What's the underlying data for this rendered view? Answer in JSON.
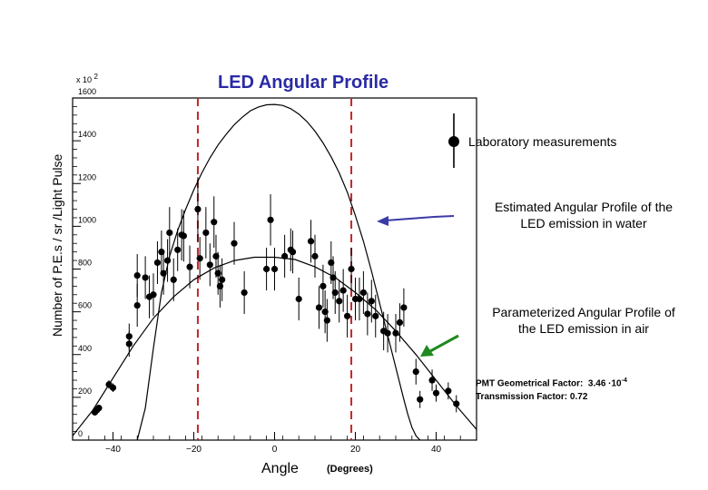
{
  "chart_data": {
    "type": "scatter",
    "title": "LED Angular Profile",
    "xlabel": "Angle",
    "x_units": "(Degrees)",
    "ylabel": "Number of P.E.s / sr /Light Pulse",
    "y_multiplier": "x 10",
    "y_multiplier_exp": "2",
    "xlim": [
      -50,
      50
    ],
    "ylim": [
      0,
      1600
    ],
    "x_ticks": [
      -40,
      -20,
      0,
      20,
      40
    ],
    "x_tick_labels": [
      "−40",
      "−20",
      "0",
      "20",
      "40"
    ],
    "y_ticks": [
      0,
      200,
      400,
      600,
      800,
      1000,
      1200,
      1400,
      1600
    ],
    "y_tick_labels": [
      "0",
      "200",
      "400",
      "600",
      "800",
      "1000",
      "1200",
      "1400",
      "1600"
    ],
    "grid": false,
    "vertical_reference_lines": [
      -19,
      19
    ],
    "reference_line_color": "#c0282c",
    "curve_color": "#000000",
    "series": [
      {
        "name": "Laboratory measurements",
        "marker": "filled-circle",
        "points": [
          {
            "x": -44.5,
            "y": 130,
            "err": 15
          },
          {
            "x": -44,
            "y": 140,
            "err": 15
          },
          {
            "x": -43.5,
            "y": 150,
            "err": 15
          },
          {
            "x": -41,
            "y": 260,
            "err": 20
          },
          {
            "x": -40,
            "y": 245,
            "err": 20
          },
          {
            "x": -36,
            "y": 450,
            "err": 60
          },
          {
            "x": -36,
            "y": 485,
            "err": 60
          },
          {
            "x": -34,
            "y": 630,
            "err": 100
          },
          {
            "x": -34,
            "y": 770,
            "err": 100
          },
          {
            "x": -32,
            "y": 760,
            "err": 100
          },
          {
            "x": -31,
            "y": 670,
            "err": 100
          },
          {
            "x": -30,
            "y": 680,
            "err": 100
          },
          {
            "x": -29,
            "y": 830,
            "err": 100
          },
          {
            "x": -28,
            "y": 880,
            "err": 100
          },
          {
            "x": -27.5,
            "y": 780,
            "err": 100
          },
          {
            "x": -26.5,
            "y": 840,
            "err": 100
          },
          {
            "x": -26,
            "y": 970,
            "err": 120
          },
          {
            "x": -25,
            "y": 750,
            "err": 100
          },
          {
            "x": -24,
            "y": 890,
            "err": 100
          },
          {
            "x": -23,
            "y": 960,
            "err": 120
          },
          {
            "x": -22.5,
            "y": 955,
            "err": 120
          },
          {
            "x": -21,
            "y": 810,
            "err": 100
          },
          {
            "x": -19,
            "y": 1080,
            "err": 150
          },
          {
            "x": -18.5,
            "y": 850,
            "err": 100
          },
          {
            "x": -17,
            "y": 970,
            "err": 120
          },
          {
            "x": -16,
            "y": 820,
            "err": 100
          },
          {
            "x": -15,
            "y": 1020,
            "err": 120
          },
          {
            "x": -14.5,
            "y": 860,
            "err": 100
          },
          {
            "x": -14,
            "y": 780,
            "err": 100
          },
          {
            "x": -13.5,
            "y": 720,
            "err": 100
          },
          {
            "x": -13,
            "y": 750,
            "err": 100
          },
          {
            "x": -10,
            "y": 920,
            "err": 100
          },
          {
            "x": -7.5,
            "y": 690,
            "err": 100
          },
          {
            "x": -2,
            "y": 800,
            "err": 100
          },
          {
            "x": -1,
            "y": 1030,
            "err": 120
          },
          {
            "x": 0,
            "y": 800,
            "err": 100
          },
          {
            "x": 2.5,
            "y": 860,
            "err": 100
          },
          {
            "x": 4,
            "y": 890,
            "err": 100
          },
          {
            "x": 4.5,
            "y": 880,
            "err": 100
          },
          {
            "x": 6,
            "y": 660,
            "err": 100
          },
          {
            "x": 9,
            "y": 930,
            "err": 100
          },
          {
            "x": 10,
            "y": 860,
            "err": 100
          },
          {
            "x": 11,
            "y": 620,
            "err": 100
          },
          {
            "x": 12,
            "y": 720,
            "err": 100
          },
          {
            "x": 12.5,
            "y": 600,
            "err": 100
          },
          {
            "x": 13,
            "y": 560,
            "err": 100
          },
          {
            "x": 14,
            "y": 830,
            "err": 100
          },
          {
            "x": 14.5,
            "y": 760,
            "err": 100
          },
          {
            "x": 15,
            "y": 690,
            "err": 100
          },
          {
            "x": 16,
            "y": 650,
            "err": 100
          },
          {
            "x": 17,
            "y": 700,
            "err": 100
          },
          {
            "x": 18,
            "y": 580,
            "err": 100
          },
          {
            "x": 19,
            "y": 800,
            "err": 100
          },
          {
            "x": 20,
            "y": 660,
            "err": 100
          },
          {
            "x": 21,
            "y": 660,
            "err": 100
          },
          {
            "x": 22,
            "y": 690,
            "err": 100
          },
          {
            "x": 23,
            "y": 590,
            "err": 100
          },
          {
            "x": 24,
            "y": 650,
            "err": 100
          },
          {
            "x": 25,
            "y": 580,
            "err": 100
          },
          {
            "x": 27,
            "y": 510,
            "err": 90
          },
          {
            "x": 28,
            "y": 500,
            "err": 90
          },
          {
            "x": 30,
            "y": 500,
            "err": 90
          },
          {
            "x": 31,
            "y": 550,
            "err": 90
          },
          {
            "x": 32,
            "y": 620,
            "err": 90
          },
          {
            "x": 35,
            "y": 320,
            "err": 60
          },
          {
            "x": 36,
            "y": 190,
            "err": 40
          },
          {
            "x": 39,
            "y": 280,
            "err": 50
          },
          {
            "x": 40,
            "y": 220,
            "err": 40
          },
          {
            "x": 43,
            "y": 230,
            "err": 40
          },
          {
            "x": 45,
            "y": 170,
            "err": 40
          }
        ]
      },
      {
        "name": "Estimated Angular Profile of the LED emission in water",
        "type": "line",
        "x": [
          -34,
          -32,
          -30,
          -28,
          -26,
          -24,
          -22,
          -20,
          -18,
          -16,
          -14,
          -12,
          -10,
          -8,
          -6,
          -4,
          -2,
          0,
          2,
          4,
          6,
          8,
          10,
          12,
          14,
          16,
          18,
          20,
          22,
          24,
          26,
          28,
          30,
          32,
          33,
          34,
          35,
          36
        ],
        "values": [
          0,
          150,
          430,
          690,
          860,
          980,
          1080,
          1170,
          1250,
          1320,
          1380,
          1430,
          1475,
          1510,
          1540,
          1558,
          1568,
          1570,
          1565,
          1550,
          1525,
          1490,
          1445,
          1390,
          1325,
          1250,
          1160,
          1050,
          930,
          790,
          640,
          490,
          340,
          190,
          120,
          60,
          20,
          0
        ]
      },
      {
        "name": "Parameterized Angular Profile of the LED emission in air",
        "type": "line",
        "x": [
          -50,
          -45,
          -40,
          -35,
          -30,
          -25,
          -20,
          -15,
          -10,
          -5,
          0,
          5,
          10,
          15,
          20,
          25,
          30,
          35,
          40,
          45,
          50
        ],
        "values": [
          20,
          140,
          290,
          440,
          570,
          670,
          750,
          805,
          840,
          855,
          855,
          845,
          810,
          760,
          690,
          610,
          510,
          400,
          280,
          160,
          50
        ]
      }
    ],
    "legend": {
      "placement": "top-right",
      "entry": "Laboratory measurements"
    },
    "annotations": {
      "water_callout": [
        "Estimated Angular Profile of the",
        "LED emission in water"
      ],
      "air_callout": [
        "Parameterized Angular Profile of",
        "the LED emission in air"
      ],
      "water_arrow_color": "#3b3ba8",
      "air_arrow_color": "#1f8a1f",
      "pmt_label": "PMT Geometrical Factor:",
      "pmt_value": "3.46 ·10",
      "pmt_exp": "-4",
      "transmission_label": "Transmission Factor:",
      "transmission_value": "0.72"
    }
  }
}
